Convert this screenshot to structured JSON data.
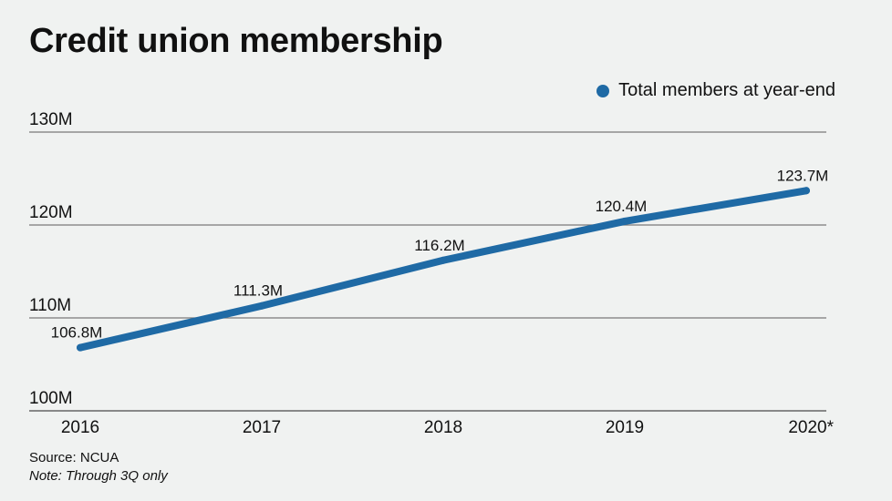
{
  "chart_data": {
    "type": "line",
    "title": "Credit union membership",
    "categories": [
      "2016",
      "2017",
      "2018",
      "2019",
      "2020*"
    ],
    "series": [
      {
        "name": "Total members at year-end",
        "values": [
          106.8,
          111.3,
          116.2,
          120.4,
          123.7
        ],
        "labels": [
          "106.8M",
          "111.3M",
          "116.2M",
          "120.4M",
          "123.7M"
        ],
        "color": "#1f6aa5"
      }
    ],
    "yticks": [
      100,
      110,
      120,
      130
    ],
    "ytick_labels": [
      "100M",
      "110M",
      "120M",
      "130M"
    ],
    "ylim": [
      100,
      130
    ],
    "grid": true,
    "legend_position": "top-right",
    "source": "Source: NCUA",
    "note": "Note: Through 3Q only"
  }
}
